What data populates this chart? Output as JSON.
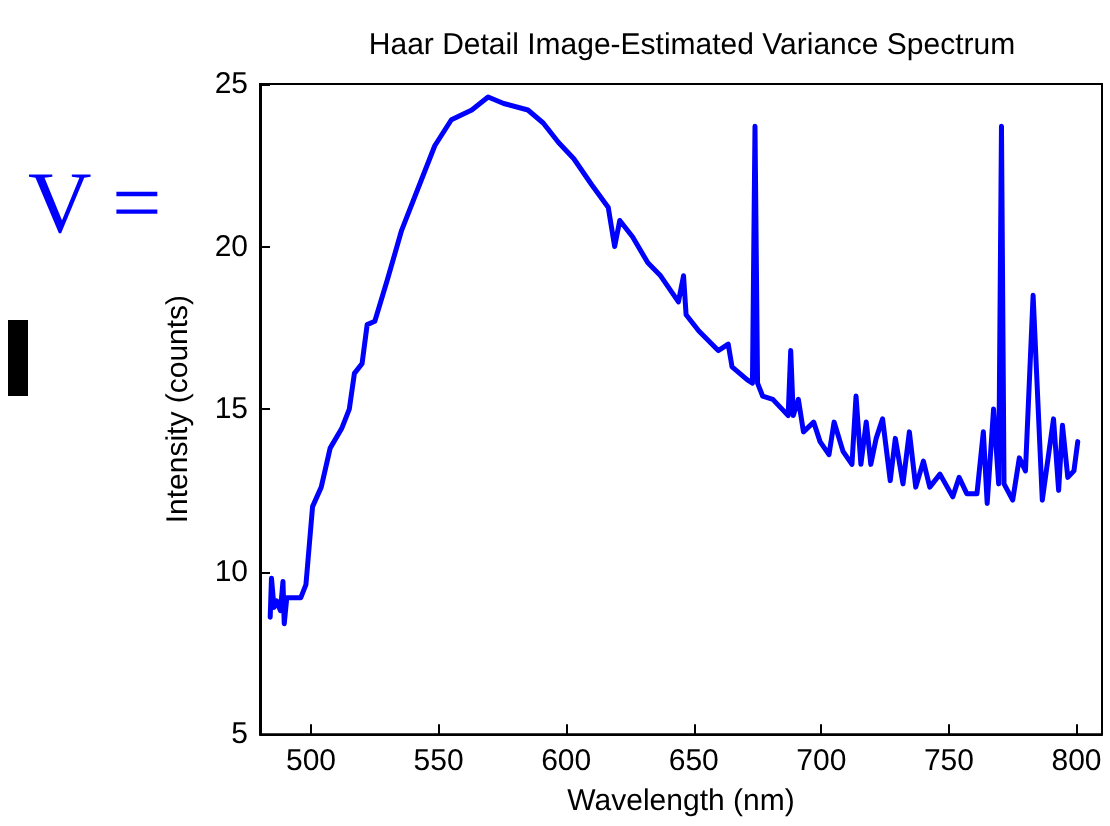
{
  "chart_data": {
    "type": "line",
    "title": "Haar Detail Image-Estimated Variance Spectrum",
    "xlabel": "Wavelength (nm)",
    "ylabel": "Intensity (counts)",
    "annotations": [
      "V ="
    ],
    "xlim": [
      480,
      810
    ],
    "xticks": [
      500,
      550,
      600,
      650,
      700,
      750,
      800
    ],
    "ylim": [
      5,
      25
    ],
    "yticks": [
      5,
      10,
      15,
      20,
      25
    ],
    "marker": "none",
    "line_style": "solid",
    "x": [
      484,
      484.5,
      485.5,
      486.5,
      488,
      489,
      489.5,
      490.5,
      496,
      498,
      500.6,
      504,
      507.5,
      512,
      515,
      517,
      520,
      522,
      525,
      530,
      535.5,
      542,
      548.5,
      555,
      563,
      569.4,
      575.5,
      585,
      591,
      597,
      603,
      610,
      616.5,
      619,
      621,
      626,
      632,
      637,
      644,
      646,
      647,
      652,
      659.6,
      663.5,
      665,
      671,
      673,
      674,
      675,
      677,
      681,
      687,
      688,
      689,
      691,
      693,
      697,
      699.5,
      703,
      705,
      708.5,
      712,
      713.6,
      715.5,
      717.6,
      719.4,
      721.5,
      724,
      727,
      729,
      732,
      734.5,
      737,
      740,
      742.5,
      746.5,
      751.5,
      754,
      757,
      761,
      763.5,
      765,
      767.5,
      769.5,
      770.6,
      771.6,
      775,
      777.6,
      780,
      783,
      786.6,
      791,
      793,
      794.5,
      796.6,
      799,
      800.5
    ],
    "series": [
      {
        "color": "#0000ff",
        "values": [
          8.6,
          9.8,
          8.9,
          9.1,
          8.8,
          9.7,
          8.4,
          9.2,
          9.2,
          9.6,
          12.0,
          12.6,
          13.8,
          14.4,
          15.0,
          16.1,
          16.4,
          17.6,
          17.7,
          19.0,
          20.5,
          21.8,
          23.1,
          23.9,
          24.2,
          24.6,
          24.4,
          24.2,
          23.8,
          23.2,
          22.7,
          21.9,
          21.2,
          20.0,
          20.8,
          20.3,
          19.5,
          19.1,
          18.3,
          19.1,
          17.9,
          17.4,
          16.8,
          17.0,
          16.3,
          15.9,
          15.8,
          23.7,
          15.8,
          15.4,
          15.3,
          14.8,
          16.8,
          14.8,
          15.3,
          14.3,
          14.6,
          14.0,
          13.6,
          14.6,
          13.7,
          13.3,
          15.4,
          13.3,
          14.6,
          13.3,
          14.1,
          14.7,
          12.8,
          14.1,
          12.7,
          14.3,
          12.6,
          13.4,
          12.6,
          13.0,
          12.3,
          12.9,
          12.4,
          12.4,
          14.3,
          12.1,
          15.0,
          12.7,
          23.7,
          12.7,
          12.2,
          13.5,
          13.1,
          18.5,
          12.2,
          14.7,
          12.5,
          14.5,
          12.9,
          13.1,
          14.0
        ]
      }
    ]
  }
}
